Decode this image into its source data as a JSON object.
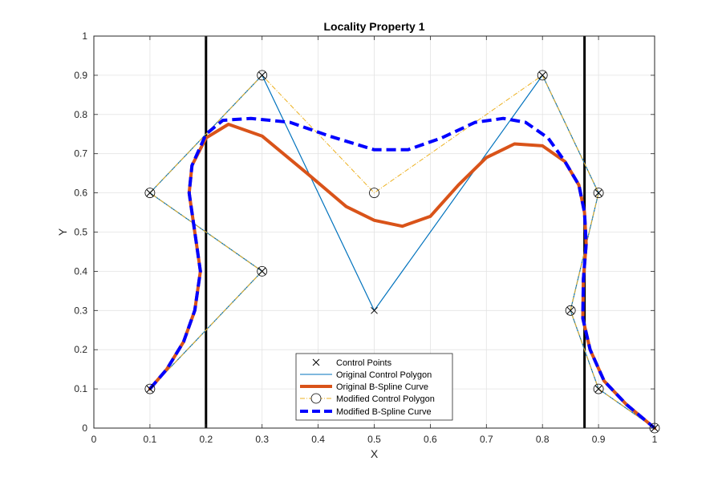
{
  "chart_data": {
    "type": "line",
    "title": "Locality Property 1",
    "xlabel": "X",
    "ylabel": "Y",
    "xlim": [
      0,
      1
    ],
    "ylim": [
      0,
      1
    ],
    "xticks": [
      "0",
      "0.1",
      "0.2",
      "0.3",
      "0.4",
      "0.5",
      "0.6",
      "0.7",
      "0.8",
      "0.9",
      "1"
    ],
    "yticks": [
      "0",
      "0.1",
      "0.2",
      "0.3",
      "0.4",
      "0.5",
      "0.6",
      "0.7",
      "0.8",
      "0.9",
      "1"
    ],
    "grid": true,
    "legend_position": "bottom-center",
    "vertical_lines": [
      0.2,
      0.875
    ],
    "series": [
      {
        "name": "Control Points",
        "kind": "markers",
        "marker": "x",
        "color": "#000000",
        "x": [
          0.1,
          0.1,
          0.3,
          0.3,
          0.5,
          0.8,
          0.9,
          0.85,
          0.9,
          1.0
        ],
        "y": [
          0.1,
          0.6,
          0.4,
          0.9,
          0.3,
          0.9,
          0.6,
          0.3,
          0.1,
          0.0
        ]
      },
      {
        "name": "Original Control Polygon",
        "kind": "line",
        "style": "solid",
        "color": "#0072BD",
        "x": [
          0.1,
          0.3,
          0.1,
          0.3,
          0.5,
          0.8,
          0.9,
          0.85,
          0.9,
          1.0
        ],
        "y": [
          0.1,
          0.4,
          0.6,
          0.9,
          0.3,
          0.9,
          0.6,
          0.3,
          0.1,
          0.0
        ]
      },
      {
        "name": "Original B-Spline Curve",
        "kind": "line",
        "style": "thick",
        "color": "#D95319",
        "x": [
          0.1,
          0.13,
          0.16,
          0.18,
          0.19,
          0.18,
          0.17,
          0.175,
          0.2,
          0.24,
          0.3,
          0.38,
          0.45,
          0.5,
          0.55,
          0.6,
          0.65,
          0.7,
          0.75,
          0.8,
          0.84,
          0.865,
          0.875,
          0.878,
          0.873,
          0.872,
          0.885,
          0.91,
          0.95,
          1.0
        ],
        "y": [
          0.1,
          0.15,
          0.22,
          0.3,
          0.4,
          0.5,
          0.6,
          0.67,
          0.74,
          0.775,
          0.745,
          0.65,
          0.565,
          0.53,
          0.515,
          0.54,
          0.62,
          0.69,
          0.725,
          0.72,
          0.68,
          0.62,
          0.55,
          0.47,
          0.38,
          0.28,
          0.2,
          0.12,
          0.06,
          0.0
        ]
      },
      {
        "name": "Modified Control Polygon",
        "kind": "line",
        "style": "dashdot",
        "marker": "o",
        "color": "#EDB120",
        "x": [
          0.1,
          0.3,
          0.1,
          0.3,
          0.5,
          0.8,
          0.9,
          0.85,
          0.9,
          1.0
        ],
        "y": [
          0.1,
          0.4,
          0.6,
          0.9,
          0.6,
          0.9,
          0.6,
          0.3,
          0.1,
          0.0
        ]
      },
      {
        "name": "Modified B-Spline Curve",
        "kind": "line",
        "style": "dashed",
        "color": "#0000FF",
        "x": [
          0.1,
          0.13,
          0.16,
          0.18,
          0.19,
          0.18,
          0.17,
          0.175,
          0.2,
          0.23,
          0.28,
          0.35,
          0.42,
          0.5,
          0.56,
          0.62,
          0.68,
          0.73,
          0.77,
          0.81,
          0.84,
          0.865,
          0.875,
          0.878,
          0.873,
          0.872,
          0.885,
          0.91,
          0.95,
          1.0
        ],
        "y": [
          0.1,
          0.15,
          0.22,
          0.3,
          0.4,
          0.5,
          0.6,
          0.67,
          0.75,
          0.785,
          0.79,
          0.78,
          0.745,
          0.71,
          0.71,
          0.74,
          0.78,
          0.79,
          0.78,
          0.74,
          0.68,
          0.62,
          0.55,
          0.47,
          0.38,
          0.28,
          0.2,
          0.12,
          0.06,
          0.0
        ]
      }
    ]
  }
}
